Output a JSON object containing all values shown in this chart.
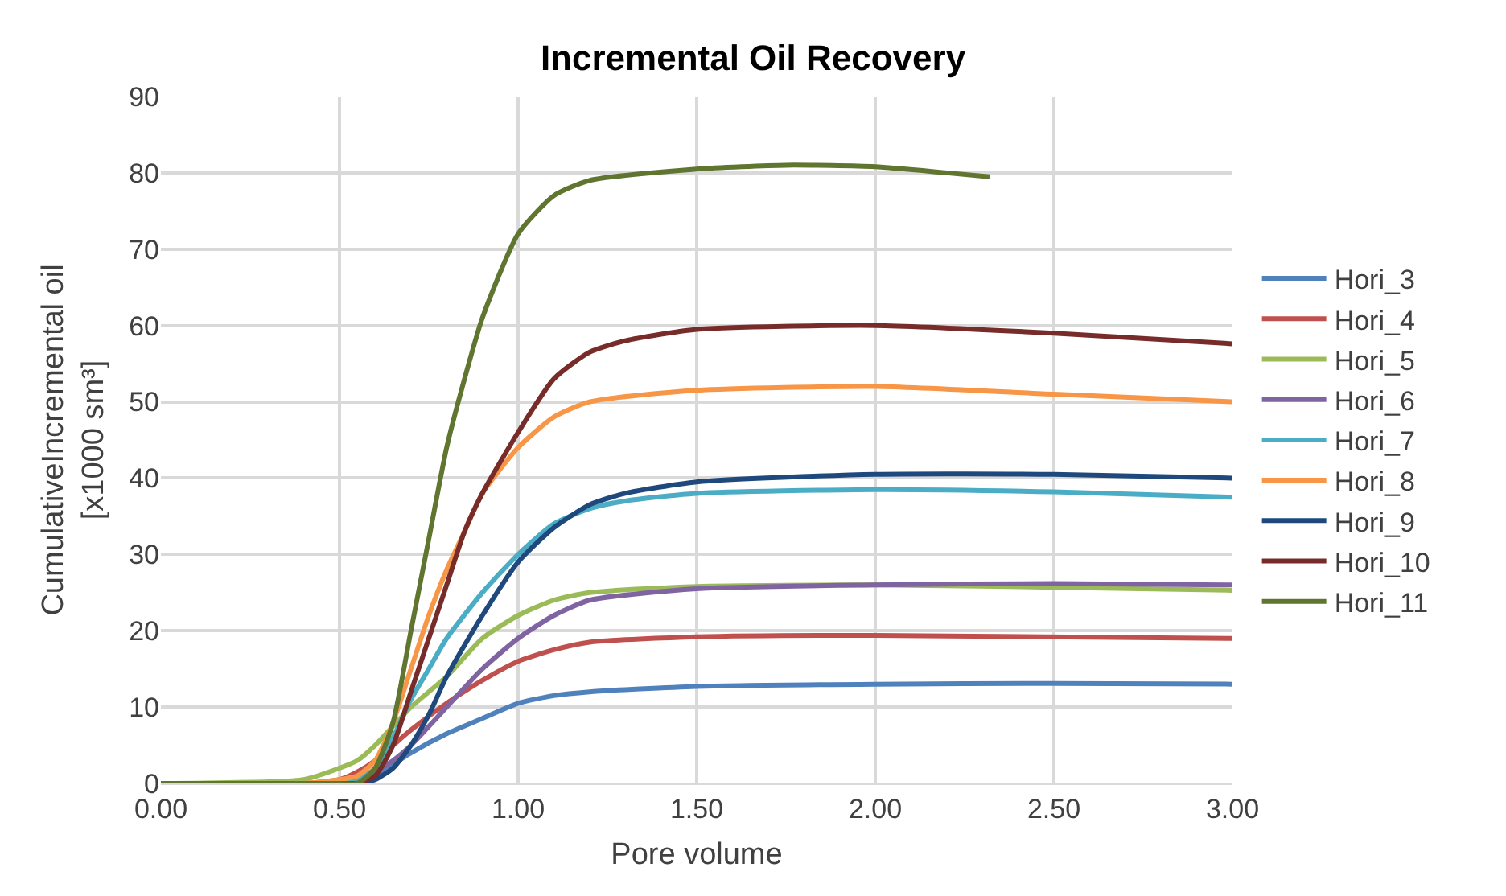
{
  "chart_data": {
    "type": "line",
    "title": "Incremental Oil Recovery",
    "xlabel": "Pore volume",
    "ylabel": "CumulativeIncremental oil\n[x1000 sm³]",
    "xlim": [
      0,
      3
    ],
    "xticks": [
      {
        "value": 0,
        "label": "0.00"
      },
      {
        "value": 0.5,
        "label": "0.50"
      },
      {
        "value": 1,
        "label": "1.00"
      },
      {
        "value": 1.5,
        "label": "1.50"
      },
      {
        "value": 2,
        "label": "2.00"
      },
      {
        "value": 2.5,
        "label": "2.50"
      },
      {
        "value": 3,
        "label": "3.00"
      }
    ],
    "ylim": [
      0,
      90
    ],
    "yticks": [
      0,
      10,
      20,
      30,
      40,
      50,
      60,
      70,
      80,
      90
    ],
    "grid": true,
    "legend": "right",
    "marker": "none",
    "line_style": "solid",
    "series": [
      {
        "name": "Hori_3",
        "color": "#4f81bd",
        "x": [
          0,
          0.5,
          0.55,
          0.6,
          0.65,
          0.7,
          0.8,
          0.9,
          1.0,
          1.1,
          1.2,
          1.5,
          2.0,
          2.5,
          3.0
        ],
        "values": [
          0,
          0,
          0,
          1,
          2.5,
          4,
          6.5,
          8.5,
          10.5,
          11.5,
          12,
          12.7,
          13,
          13.1,
          13
        ]
      },
      {
        "name": "Hori_4",
        "color": "#c0504d",
        "x": [
          0,
          0.4,
          0.5,
          0.55,
          0.6,
          0.65,
          0.7,
          0.8,
          0.9,
          1.0,
          1.1,
          1.2,
          1.5,
          2.0,
          3.0
        ],
        "values": [
          0,
          0,
          0.5,
          1.5,
          3,
          5,
          7,
          10.5,
          13.5,
          16,
          17.5,
          18.5,
          19.2,
          19.4,
          19
        ]
      },
      {
        "name": "Hori_5",
        "color": "#9bbb59",
        "x": [
          0,
          0.3,
          0.4,
          0.5,
          0.55,
          0.6,
          0.65,
          0.7,
          0.8,
          0.9,
          1.0,
          1.1,
          1.2,
          1.5,
          2.0,
          2.5,
          3.0
        ],
        "values": [
          0,
          0.2,
          0.5,
          2,
          3,
          5,
          7.5,
          10,
          14,
          19,
          22,
          24,
          25,
          25.8,
          26,
          25.7,
          25.3
        ]
      },
      {
        "name": "Hori_6",
        "color": "#8064a2",
        "x": [
          0,
          0.5,
          0.55,
          0.6,
          0.65,
          0.7,
          0.8,
          0.9,
          1.0,
          1.1,
          1.2,
          1.5,
          2.0,
          2.5,
          3.0
        ],
        "values": [
          0,
          0,
          0,
          1.5,
          3,
          5,
          10,
          15,
          19,
          22,
          24,
          25.5,
          26,
          26.2,
          26
        ]
      },
      {
        "name": "Hori_7",
        "color": "#4bacc6",
        "x": [
          0,
          0.5,
          0.55,
          0.6,
          0.65,
          0.7,
          0.75,
          0.8,
          0.9,
          1.0,
          1.1,
          1.2,
          1.3,
          1.5,
          2.0,
          2.5,
          3.0
        ],
        "values": [
          0,
          0,
          0.5,
          2,
          6,
          11,
          15,
          19,
          25,
          30,
          34,
          36,
          37,
          38,
          38.5,
          38.2,
          37.5
        ]
      },
      {
        "name": "Hori_8",
        "color": "#f79646",
        "x": [
          0,
          0.4,
          0.5,
          0.55,
          0.6,
          0.65,
          0.7,
          0.75,
          0.8,
          0.85,
          0.9,
          1.0,
          1.1,
          1.2,
          1.5,
          2.0,
          2.5,
          3.0
        ],
        "values": [
          0,
          0,
          0.5,
          1,
          3,
          8,
          15,
          22,
          28,
          33,
          38,
          44,
          48,
          50,
          51.5,
          52,
          51,
          50
        ]
      },
      {
        "name": "Hori_9",
        "color": "#1f497d",
        "x": [
          0,
          0.5,
          0.55,
          0.6,
          0.65,
          0.7,
          0.75,
          0.8,
          0.9,
          1.0,
          1.1,
          1.2,
          1.3,
          1.5,
          2.0,
          2.5,
          3.0
        ],
        "values": [
          0,
          0,
          0,
          0.5,
          2,
          5,
          9,
          14,
          22,
          29,
          33.5,
          36.5,
          38,
          39.5,
          40.5,
          40.5,
          40
        ]
      },
      {
        "name": "Hori_10",
        "color": "#772c2a",
        "x": [
          0,
          0.5,
          0.55,
          0.6,
          0.65,
          0.7,
          0.75,
          0.8,
          0.85,
          0.9,
          1.0,
          1.1,
          1.2,
          1.3,
          1.5,
          2.0,
          2.5,
          3.0
        ],
        "values": [
          0,
          0,
          0,
          1,
          5,
          12,
          19,
          26,
          33,
          38,
          46,
          53,
          56.5,
          58,
          59.5,
          60,
          59,
          57.6
        ]
      },
      {
        "name": "Hori_11",
        "color": "#5f7530",
        "x": [
          0,
          0.5,
          0.55,
          0.6,
          0.65,
          0.7,
          0.75,
          0.8,
          0.85,
          0.9,
          1.0,
          1.1,
          1.2,
          1.5,
          1.75,
          2.0,
          2.2,
          2.32
        ],
        "values": [
          0,
          0,
          0,
          2,
          8,
          20,
          32,
          44,
          53,
          61,
          72,
          77,
          79,
          80.5,
          81,
          80.8,
          80,
          79.5
        ]
      }
    ]
  }
}
